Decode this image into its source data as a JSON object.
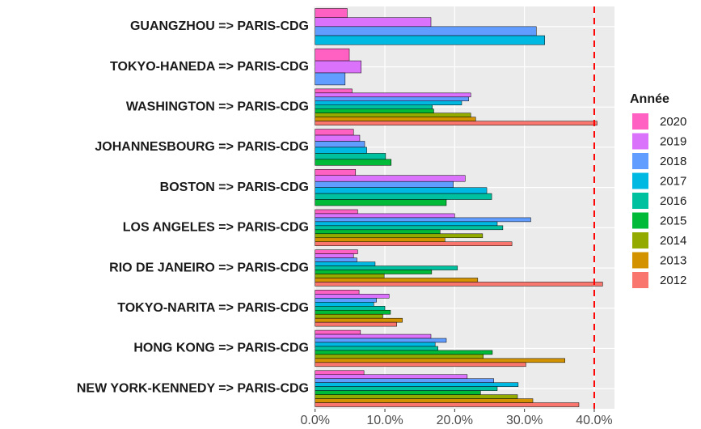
{
  "chart_data": {
    "type": "hbar",
    "categories": [
      "GUANGZHOU => PARIS-CDG",
      "TOKYO-HANEDA => PARIS-CDG",
      "WASHINGTON => PARIS-CDG",
      "JOHANNESBOURG => PARIS-CDG",
      "BOSTON => PARIS-CDG",
      "LOS ANGELES => PARIS-CDG",
      "RIO DE JANEIRO => PARIS-CDG",
      "TOKYO-NARITA => PARIS-CDG",
      "HONG KONG => PARIS-CDG",
      "NEW YORK-KENNEDY => PARIS-CDG"
    ],
    "legend_title": "Année",
    "series": [
      {
        "name": "2020",
        "color": "#FF61C3",
        "values": [
          4.6,
          4.9,
          5.3,
          5.5,
          5.8,
          6.1,
          6.1,
          6.3,
          6.5,
          7.0
        ]
      },
      {
        "name": "2019",
        "color": "#DB72FB",
        "values": [
          16.6,
          6.6,
          22.3,
          6.4,
          21.5,
          20.0,
          5.5,
          10.6,
          16.6,
          21.8
        ]
      },
      {
        "name": "2018",
        "color": "#619CFF",
        "values": [
          31.7,
          4.3,
          22.0,
          7.1,
          19.8,
          30.9,
          6.0,
          8.8,
          18.8,
          25.6
        ]
      },
      {
        "name": "2017",
        "color": "#00B9E3",
        "values": [
          32.9,
          null,
          21.0,
          7.4,
          24.6,
          26.1,
          8.6,
          8.4,
          17.2,
          29.1
        ]
      },
      {
        "name": "2016",
        "color": "#00C19F",
        "values": [
          null,
          null,
          16.8,
          10.1,
          25.3,
          26.9,
          20.4,
          10.0,
          17.6,
          26.1
        ]
      },
      {
        "name": "2015",
        "color": "#00BA38",
        "values": [
          null,
          null,
          17.0,
          10.9,
          18.8,
          17.9,
          16.7,
          10.8,
          25.4,
          23.7
        ]
      },
      {
        "name": "2014",
        "color": "#93AA00",
        "values": [
          null,
          null,
          22.3,
          null,
          null,
          24.0,
          9.9,
          9.7,
          24.1,
          29.0
        ]
      },
      {
        "name": "2013",
        "color": "#D39200",
        "values": [
          null,
          null,
          23.0,
          null,
          null,
          18.6,
          23.3,
          12.5,
          35.8,
          31.2
        ]
      },
      {
        "name": "2012",
        "color": "#F8766D",
        "values": [
          null,
          null,
          40.4,
          null,
          null,
          28.2,
          41.2,
          11.7,
          30.2,
          37.8
        ]
      }
    ],
    "xlim": [
      -0.2,
      42.9
    ],
    "xticks": [
      {
        "value": 0,
        "label": "0.0%"
      },
      {
        "value": 10,
        "label": "10.0%"
      },
      {
        "value": 20,
        "label": "20.0%"
      },
      {
        "value": 30,
        "label": "30.0%"
      },
      {
        "value": 40,
        "label": "40.0%"
      }
    ],
    "grid": true,
    "vline": 40,
    "vline_color": "#ff0000",
    "legend_position": "right"
  }
}
